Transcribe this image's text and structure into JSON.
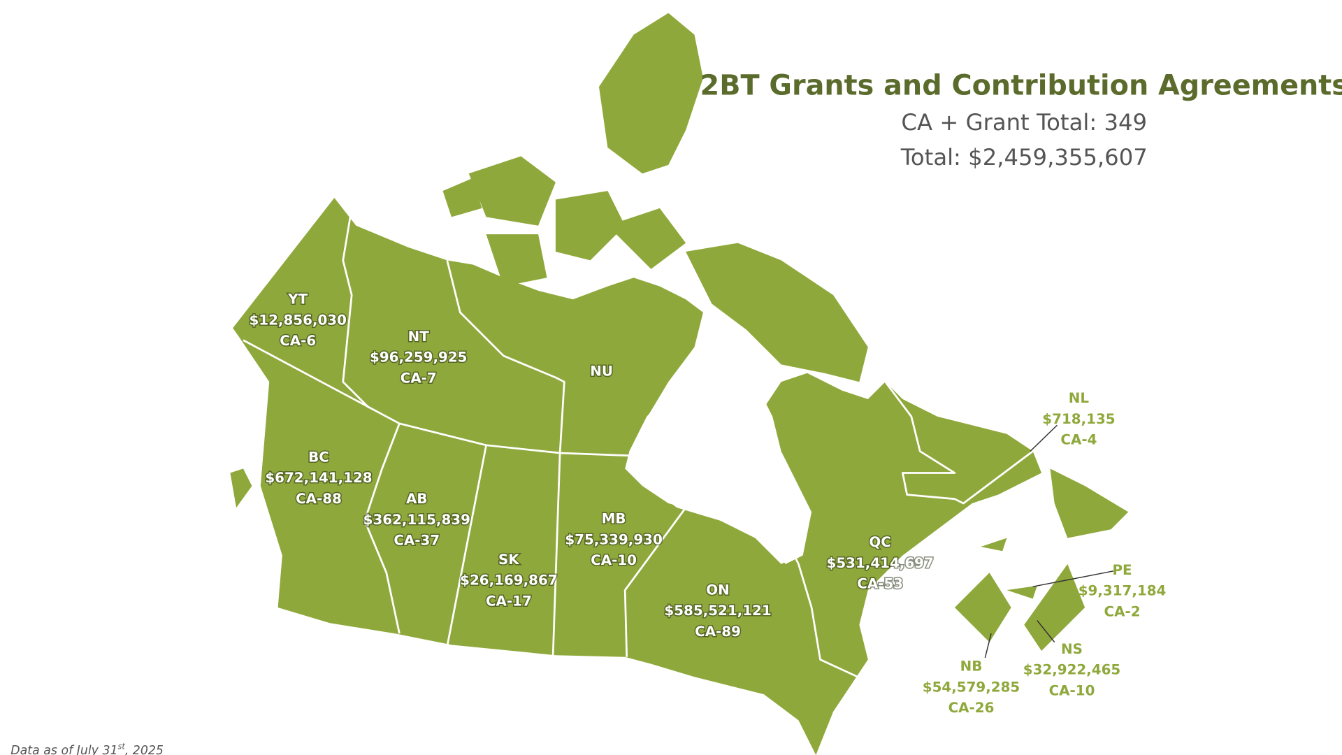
{
  "header": {
    "title": "2BT Grants and Contribution Agreements",
    "count_line": "CA + Grant Total: 349",
    "total_line": "Total: $2,459,355,607"
  },
  "regions": [
    {
      "code": "YT",
      "amount": "$12,856,030",
      "agreements": "CA-6"
    },
    {
      "code": "NT",
      "amount": "$96,259,925",
      "agreements": "CA-7"
    },
    {
      "code": "NU"
    },
    {
      "code": "BC",
      "amount": "$672,141,128",
      "agreements": "CA-88"
    },
    {
      "code": "AB",
      "amount": "$362,115,839",
      "agreements": "CA-37"
    },
    {
      "code": "SK",
      "amount": "$26,169,867",
      "agreements": "CA-17"
    },
    {
      "code": "MB",
      "amount": "$75,339,930",
      "agreements": "CA-10"
    },
    {
      "code": "ON",
      "amount": "$585,521,121",
      "agreements": "CA-89"
    },
    {
      "code": "QC",
      "amount": "$531,414,697",
      "agreements": "CA-53"
    },
    {
      "code": "NL",
      "amount": "$718,135",
      "agreements": "CA-4"
    },
    {
      "code": "PE",
      "amount": "$9,317,184",
      "agreements": "CA-2"
    },
    {
      "code": "NB",
      "amount": "$54,579,285",
      "agreements": "CA-26"
    },
    {
      "code": "NS",
      "amount": "$32,922,465",
      "agreements": "CA-10"
    }
  ],
  "footnote": {
    "text": "Data as of July 31",
    "superscript": "st",
    "text_after": ", 2025"
  }
}
